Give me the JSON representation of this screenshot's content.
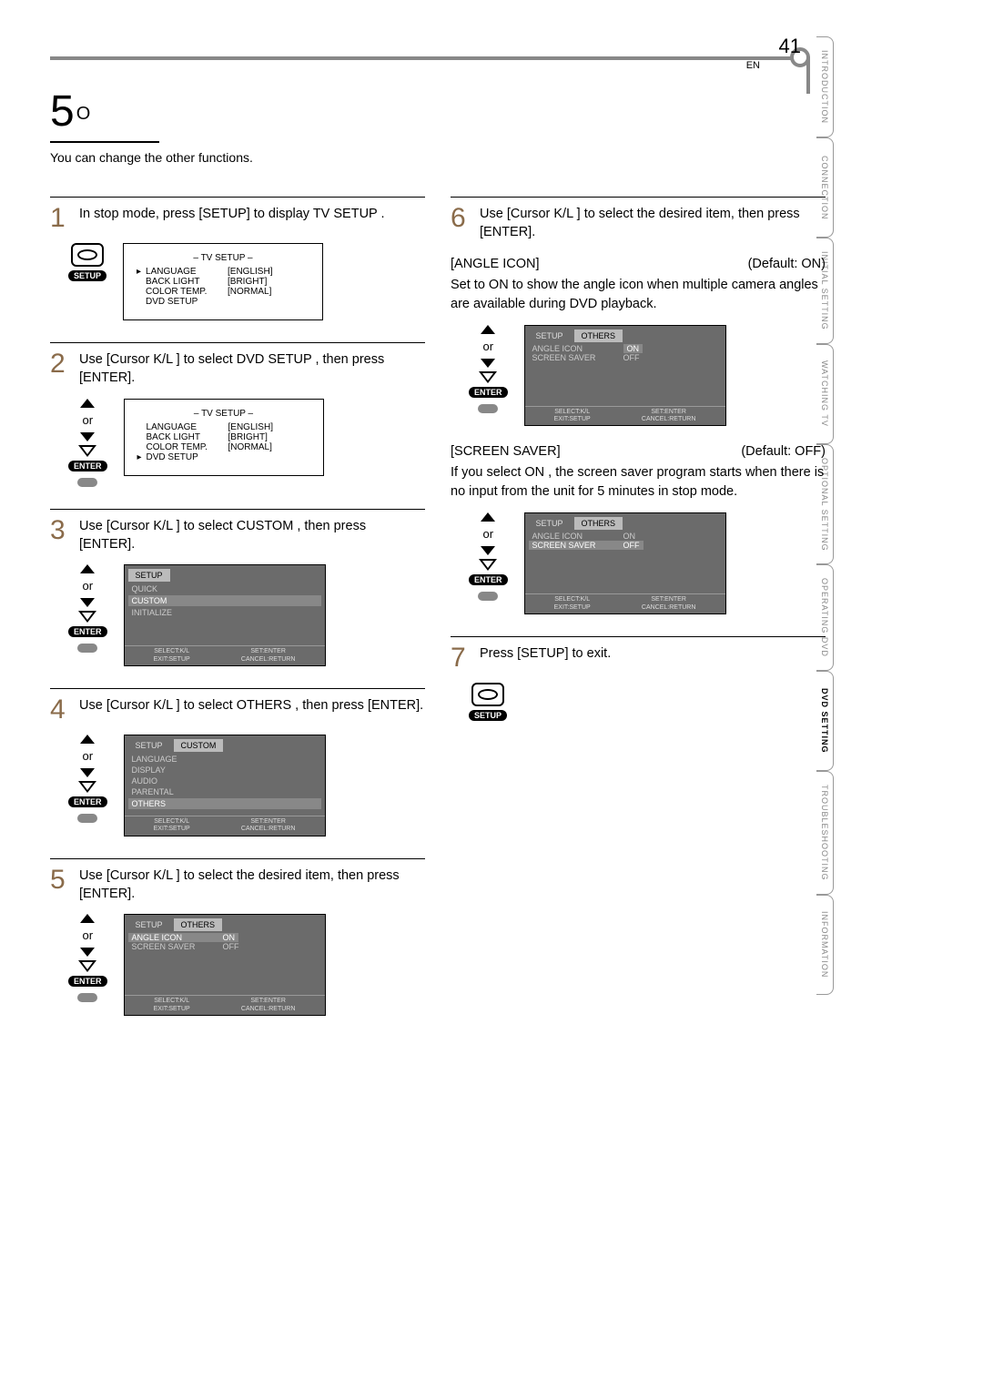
{
  "header": {
    "section_number": "5",
    "section_sub": "O",
    "description": "You can change the other functions."
  },
  "side_tabs": [
    {
      "label": "INTRODUCTION",
      "active": false
    },
    {
      "label": "CONNECTION",
      "active": false
    },
    {
      "label": "INITIAL SETTING",
      "active": false
    },
    {
      "label": "WATCHING TV",
      "active": false
    },
    {
      "label": "OPTIONAL SETTING",
      "active": false
    },
    {
      "label": "OPERATING DVD",
      "active": false
    },
    {
      "label": "DVD SETTING",
      "active": true
    },
    {
      "label": "TROUBLESHOOTING",
      "active": false
    },
    {
      "label": "INFORMATION",
      "active": false
    }
  ],
  "remote": {
    "or": "or",
    "enter": "ENTER",
    "setup": "SETUP"
  },
  "osd_tv": {
    "title": "–  TV SETUP  –",
    "rows": [
      {
        "arrow": "▸",
        "label": "LANGUAGE",
        "value": "[ENGLISH]"
      },
      {
        "arrow": "",
        "label": "BACK LIGHT",
        "value": "[BRIGHT]"
      },
      {
        "arrow": "",
        "label": "COLOR TEMP.",
        "value": "[NORMAL]"
      },
      {
        "arrow": "",
        "label": "DVD SETUP",
        "value": ""
      }
    ]
  },
  "osd_tv2": {
    "title": "–  TV SETUP  –",
    "rows": [
      {
        "arrow": "",
        "label": "LANGUAGE",
        "value": "[ENGLISH]"
      },
      {
        "arrow": "",
        "label": "BACK LIGHT",
        "value": "[BRIGHT]"
      },
      {
        "arrow": "",
        "label": "COLOR TEMP.",
        "value": "[NORMAL]"
      },
      {
        "arrow": "▸",
        "label": "DVD SETUP",
        "value": ""
      }
    ]
  },
  "osd_setup_list": {
    "tab": "SETUP",
    "rows": [
      "QUICK",
      "CUSTOM",
      "INITIALIZE"
    ],
    "selected": 1
  },
  "osd_custom": {
    "tabs": [
      "SETUP",
      "CUSTOM"
    ],
    "rows": [
      "LANGUAGE",
      "DISPLAY",
      "AUDIO",
      "PARENTAL",
      "OTHERS"
    ],
    "selected": 4
  },
  "osd_others_angle_on": {
    "tabs": [
      "SETUP",
      "OTHERS"
    ],
    "rows": [
      {
        "l": "ANGLE ICON",
        "r": "ON",
        "sel_r": true
      },
      {
        "l": "SCREEN SAVER",
        "r": "OFF",
        "sel_r": false
      }
    ],
    "sel_row": 0
  },
  "osd_others_angle_off_on": {
    "tabs": [
      "SETUP",
      "OTHERS"
    ],
    "rows": [
      {
        "l": "ANGLE ICON",
        "r": "ON",
        "sel_r": false
      },
      {
        "l": "SCREEN SAVER",
        "r": "OFF",
        "sel_r": false
      }
    ],
    "highlight_on_col": 0
  },
  "osd_others_ss": {
    "tabs": [
      "SETUP",
      "OTHERS"
    ],
    "rows": [
      {
        "l": "ANGLE ICON",
        "r": "ON"
      },
      {
        "l": "SCREEN SAVER",
        "r": "OFF"
      }
    ],
    "highlight_row": 1
  },
  "footer": {
    "left1": "SELECT:K/L",
    "left2": "EXIT:SETUP",
    "right1": "SET:ENTER",
    "right2": "CANCEL:RETURN"
  },
  "steps": {
    "s1": "In stop mode, press [SETUP] to display  TV SETUP .",
    "s2": "Use [Cursor K/L ] to select  DVD SETUP , then press [ENTER].",
    "s3": "Use [Cursor K/L ] to select  CUSTOM , then press [ENTER].",
    "s4": "Use [Cursor K/L ] to select  OTHERS , then press [ENTER].",
    "s5": "Use [Cursor K/L ] to select the desired item, then press [ENTER].",
    "s6": "Use [Cursor K/L ] to select the desired item, then press [ENTER].",
    "s7": "Press [SETUP] to exit."
  },
  "info": {
    "angle_title": "[ANGLE ICON]",
    "angle_default": "(Default: ON)",
    "angle_body": "Set to  ON  to show the angle icon when multiple camera angles are available during DVD playback.",
    "ss_title": "[SCREEN SAVER]",
    "ss_default": "(Default: OFF)",
    "ss_body": "If you select  ON , the screen saver program starts when there is no input from the unit for 5 minutes in stop mode."
  },
  "page": {
    "num": "41",
    "lang": "EN"
  }
}
